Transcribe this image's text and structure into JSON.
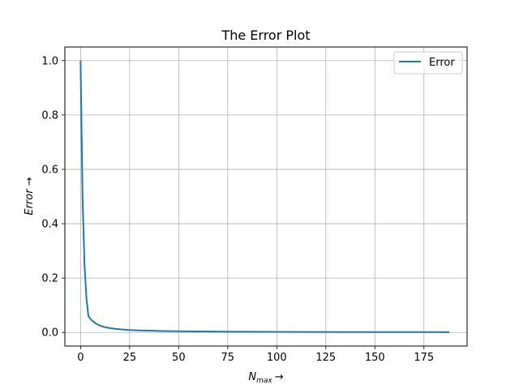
{
  "chart_data": {
    "type": "line",
    "title": "The Error Plot",
    "xlabel": {
      "main": "N",
      "sub": "max",
      "arrow": "→"
    },
    "ylabel": "Error →",
    "xlim": [
      -8,
      197
    ],
    "ylim": [
      -0.05,
      1.05
    ],
    "xticks": [
      0,
      25,
      50,
      75,
      100,
      125,
      150,
      175
    ],
    "yticks": [
      0.0,
      0.2,
      0.4,
      0.6,
      0.8,
      1.0
    ],
    "xtick_labels": [
      "0",
      "25",
      "50",
      "75",
      "100",
      "125",
      "150",
      "175"
    ],
    "ytick_labels": [
      "0.0",
      "0.2",
      "0.4",
      "0.6",
      "0.8",
      "1.0"
    ],
    "grid": true,
    "legend_position": "top-right",
    "series": [
      {
        "name": "Error",
        "color": "#1f77b4",
        "x": [
          0,
          1,
          2,
          3,
          4,
          5,
          6,
          7,
          8,
          10,
          12,
          15,
          18,
          21,
          25,
          30,
          35,
          40,
          50,
          60,
          75,
          90,
          100,
          125,
          150,
          175,
          188
        ],
        "y": [
          1.0,
          0.5,
          0.25,
          0.125,
          0.06,
          0.05,
          0.043,
          0.037,
          0.032,
          0.025,
          0.02,
          0.016,
          0.013,
          0.011,
          0.009,
          0.0075,
          0.0065,
          0.0055,
          0.0045,
          0.0038,
          0.003,
          0.0025,
          0.0022,
          0.0018,
          0.0015,
          0.0013,
          0.0012
        ]
      }
    ]
  }
}
